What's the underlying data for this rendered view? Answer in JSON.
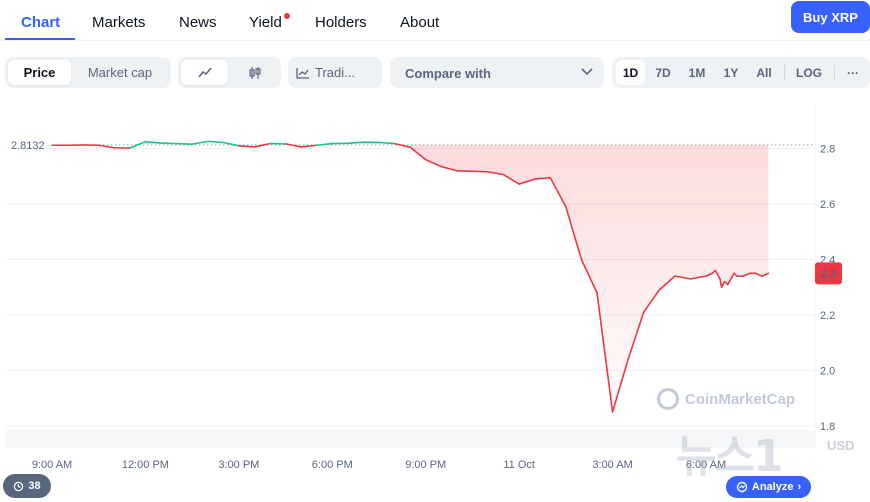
{
  "nav": {
    "tabs": [
      {
        "label": "Chart",
        "active": true
      },
      {
        "label": "Markets"
      },
      {
        "label": "News"
      },
      {
        "label": "Yield",
        "has_dot": true
      },
      {
        "label": "Holders"
      },
      {
        "label": "About"
      }
    ],
    "buy_label": "Buy XRP"
  },
  "toolbar": {
    "price_label": "Price",
    "market_cap_label": "Market cap",
    "line_icon": "line-chart-icon",
    "candle_icon": "candlestick-icon",
    "trading_label": "Tradi...",
    "compare_label": "Compare with",
    "ranges": [
      "1D",
      "7D",
      "1M",
      "1Y",
      "All"
    ],
    "active_range": "1D",
    "log_label": "LOG",
    "more_label": "···"
  },
  "chart_data": {
    "type": "line",
    "reference_price": "2.8132",
    "current_price_label": "2.3",
    "y_ticks": [
      "2.8",
      "2.6",
      "2.4",
      "2.2",
      "2.0",
      "1.8"
    ],
    "x_ticks": [
      "9:00 AM",
      "12:00 PM",
      "3:00 PM",
      "6:00 PM",
      "9:00 PM",
      "11 Oct",
      "3:00 AM",
      "6:00 AM"
    ],
    "ylim": [
      1.72,
      2.95
    ],
    "x_hours_from_9am": [
      0,
      0.5,
      1,
      1.5,
      2,
      2.5,
      3,
      3.5,
      4,
      4.5,
      5,
      5.5,
      6,
      6.5,
      7,
      7.5,
      8,
      8.5,
      9,
      9.5,
      10,
      10.5,
      11,
      11.5,
      12,
      12.5,
      13,
      13.5,
      14,
      14.5,
      15,
      15.5,
      16,
      16.5,
      17,
      17.5,
      18,
      18.5,
      19,
      19.5,
      20,
      20.5,
      21,
      21.2,
      21.3,
      21.45,
      21.5,
      21.6,
      21.7,
      21.8,
      21.9,
      22,
      22.2,
      22.4,
      22.6,
      22.8,
      23
    ],
    "y": [
      2.812,
      2.812,
      2.813,
      2.812,
      2.803,
      2.802,
      2.825,
      2.82,
      2.818,
      2.816,
      2.826,
      2.822,
      2.81,
      2.806,
      2.818,
      2.817,
      2.806,
      2.812,
      2.818,
      2.819,
      2.823,
      2.822,
      2.818,
      2.805,
      2.76,
      2.735,
      2.72,
      2.718,
      2.716,
      2.706,
      2.672,
      2.69,
      2.695,
      2.59,
      2.4,
      2.28,
      1.85,
      2.04,
      2.21,
      2.29,
      2.34,
      2.33,
      2.34,
      2.35,
      2.36,
      2.33,
      2.3,
      2.32,
      2.31,
      2.33,
      2.35,
      2.34,
      2.34,
      2.35,
      2.35,
      2.34,
      2.35
    ],
    "up_color": "#16c784",
    "down_color": "#ea3943",
    "watermark": "CoinMarketCap"
  },
  "footer": {
    "badge_count": "38",
    "analyze_label": "Analyze",
    "stamp": "뉴스1",
    "usd_label": "USD"
  }
}
